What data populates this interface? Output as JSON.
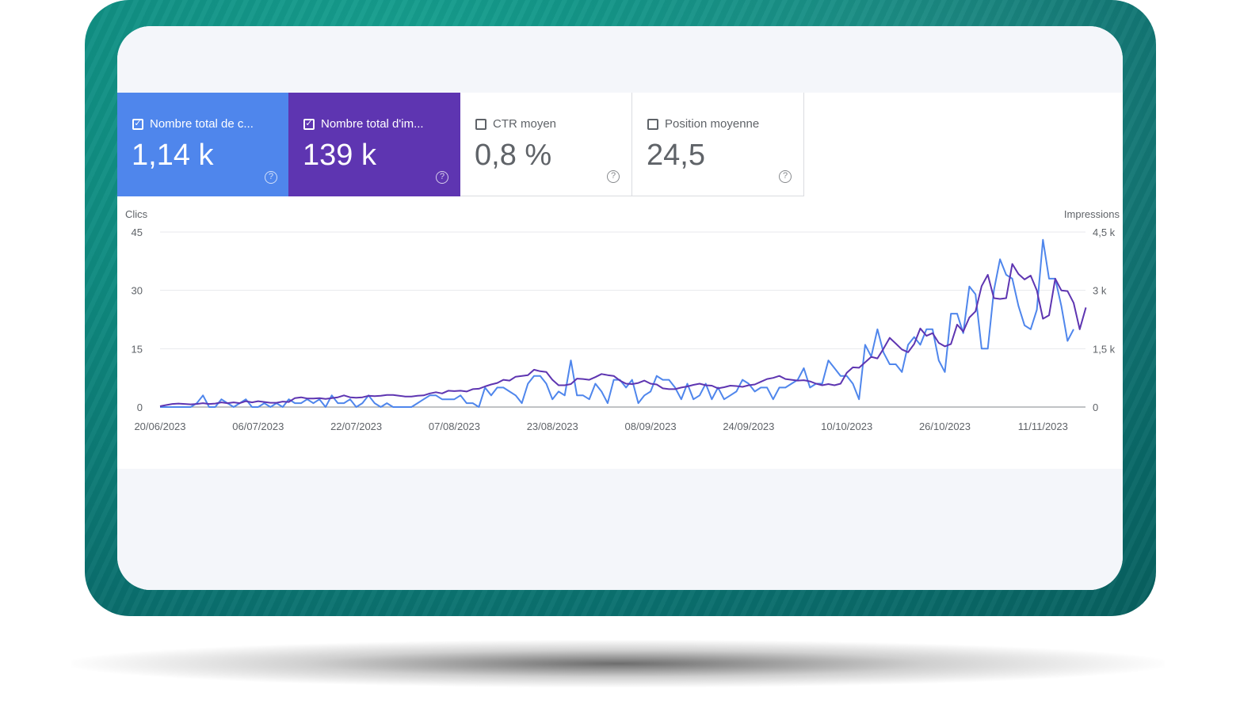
{
  "metrics": [
    {
      "label": "Nombre total de c...",
      "value": "1,14 k",
      "checked": true,
      "color": "#4f86ec"
    },
    {
      "label": "Nombre total d'im...",
      "value": "139 k",
      "checked": true,
      "color": "#5e35b1"
    },
    {
      "label": "CTR moyen",
      "value": "0,8 %",
      "checked": false,
      "color": "#ffffff"
    },
    {
      "label": "Position moyenne",
      "value": "24,5",
      "checked": false,
      "color": "#ffffff"
    }
  ],
  "icons": {
    "checkbox_checked": "check-icon",
    "checkbox_empty": "empty-checkbox-icon",
    "help": "help-circle-icon"
  },
  "chart_data": {
    "type": "line",
    "ylabel": "Clics",
    "y2label": "Impressions",
    "ylim": [
      0,
      45
    ],
    "y2lim": [
      0,
      4500
    ],
    "yticks": [
      "0",
      "15",
      "30",
      "45"
    ],
    "y2ticks": [
      "0",
      "1,5 k",
      "3 k",
      "4,5 k"
    ],
    "xtick_labels": [
      "20/06/2023",
      "06/07/2023",
      "22/07/2023",
      "07/08/2023",
      "23/08/2023",
      "08/09/2023",
      "24/09/2023",
      "10/10/2023",
      "26/10/2023",
      "11/11/2023"
    ],
    "x_start": "20/06/2023",
    "x_end": "25/11/2023",
    "grid": true,
    "series": [
      {
        "name": "Clics",
        "axis": "left",
        "color": "#4f86ec",
        "values": [
          0,
          0,
          0,
          0,
          0,
          0,
          1,
          3,
          0,
          0,
          2,
          1,
          0,
          1,
          2,
          0,
          0,
          1,
          0,
          1,
          0,
          2,
          1,
          1,
          2,
          1,
          2,
          0,
          3,
          1,
          1,
          2,
          0,
          1,
          3,
          1,
          0,
          1,
          0,
          0,
          0,
          0,
          1,
          2,
          3,
          3,
          2,
          2,
          2,
          3,
          1,
          1,
          0,
          5,
          3,
          5,
          5,
          4,
          3,
          1,
          6,
          8,
          8,
          6,
          2,
          4,
          3,
          12,
          3,
          3,
          2,
          6,
          4,
          1,
          7,
          7,
          5,
          7,
          1,
          3,
          4,
          8,
          7,
          7,
          5,
          2,
          6,
          2,
          3,
          6,
          2,
          5,
          2,
          3,
          4,
          7,
          6,
          4,
          5,
          5,
          2,
          5,
          5,
          6,
          7,
          10,
          5,
          6,
          6,
          12,
          10,
          8,
          8,
          6,
          2,
          16,
          13,
          20,
          14,
          11,
          11,
          9,
          16,
          18,
          16,
          20,
          20,
          12,
          9,
          24,
          24,
          19,
          31,
          29,
          15,
          15,
          30,
          38,
          34,
          33,
          26,
          21,
          20,
          25,
          43,
          33,
          33,
          26,
          17,
          20
        ],
        "note": "left axis values in clics"
      },
      {
        "name": "Impressions",
        "axis": "right",
        "color": "#5e35b1",
        "values": [
          20,
          50,
          80,
          90,
          80,
          70,
          80,
          100,
          80,
          90,
          120,
          100,
          120,
          100,
          150,
          120,
          150,
          130,
          110,
          110,
          140,
          130,
          230,
          250,
          220,
          220,
          230,
          210,
          230,
          250,
          300,
          250,
          240,
          250,
          290,
          280,
          290,
          310,
          310,
          290,
          270,
          270,
          290,
          300,
          350,
          380,
          350,
          420,
          410,
          420,
          400,
          460,
          470,
          530,
          580,
          620,
          700,
          680,
          780,
          800,
          820,
          960,
          920,
          900,
          700,
          560,
          560,
          590,
          730,
          720,
          700,
          770,
          850,
          820,
          800,
          680,
          600,
          590,
          620,
          680,
          600,
          580,
          480,
          460,
          460,
          500,
          530,
          570,
          600,
          560,
          550,
          480,
          510,
          550,
          540,
          520,
          560,
          580,
          650,
          720,
          750,
          800,
          720,
          700,
          680,
          690,
          660,
          600,
          560,
          590,
          560,
          600,
          880,
          1020,
          1010,
          1150,
          1290,
          1250,
          1500,
          1780,
          1630,
          1480,
          1410,
          1620,
          2020,
          1830,
          1900,
          1650,
          1560,
          1620,
          2120,
          1940,
          2300,
          2460,
          3110,
          3400,
          2800,
          2780,
          2800,
          3680,
          3420,
          3280,
          3380,
          3000,
          2270,
          2360,
          3300,
          3000,
          2980,
          2680,
          2000,
          2560
        ]
      }
    ]
  }
}
